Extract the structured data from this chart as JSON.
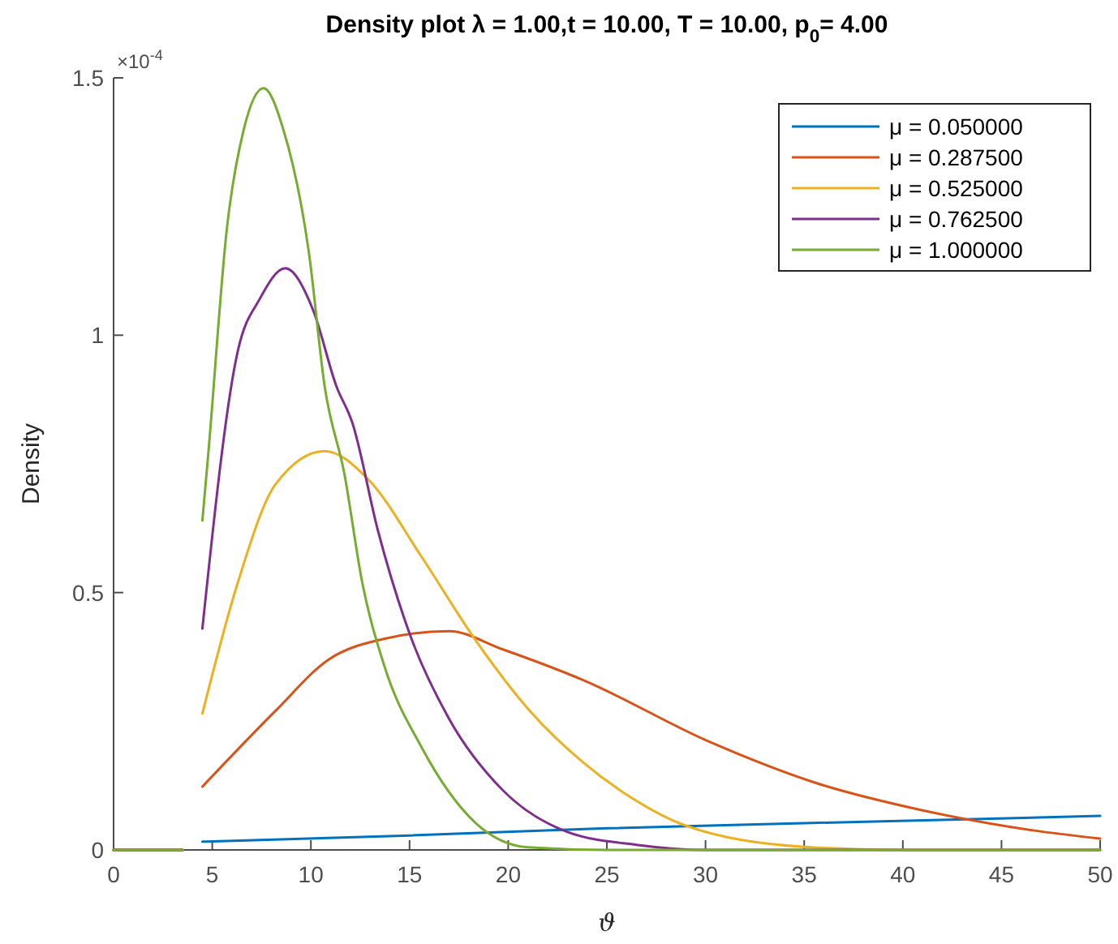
{
  "chart_data": {
    "type": "line",
    "title": "Density plot  λ = 1.00,t = 10.00, T = 10.00, p$_{0}$= 4.00",
    "xlabel": "ϑ",
    "ylabel": "Density",
    "annotations": [
      "×10$^{-4}$"
    ],
    "xlim": [
      0,
      50
    ],
    "ylim": [
      0,
      1.5
    ],
    "xticks": [
      0,
      5,
      10,
      15,
      20,
      25,
      30,
      35,
      40,
      45,
      50
    ],
    "yticks": [
      0,
      0.5,
      1,
      1.5
    ],
    "grid": false,
    "legend": "top right",
    "line_style": "solid",
    "marker": "none",
    "series": [
      {
        "name": "μ = 0.050000",
        "color": "#0072bd",
        "x": [
          0,
          3.5,
          4,
          4.5,
          15,
          25,
          35,
          50
        ],
        "values": [
          0,
          0,
          null,
          0.016,
          0.028,
          0.042,
          0.052,
          0.066
        ]
      },
      {
        "name": "μ = 0.287500",
        "color": "#d95319",
        "x": [
          0,
          3.5,
          4,
          4.5,
          8.2,
          10.9,
          13.7,
          17,
          19.7,
          23.8,
          30.2,
          35.6,
          41.1,
          46.6,
          50
        ],
        "values": [
          0,
          0,
          null,
          0.123,
          0.27,
          0.37,
          0.41,
          0.425,
          0.39,
          0.33,
          0.21,
          0.13,
          0.076,
          0.038,
          0.022
        ]
      },
      {
        "name": "μ = 0.525000",
        "color": "#edb120",
        "x": [
          0,
          3.5,
          4,
          4.5,
          6.3,
          8.2,
          10.7,
          12.9,
          15.6,
          18.3,
          21.1,
          23.8,
          26.3,
          28.8,
          35,
          40,
          50
        ],
        "values": [
          0,
          0,
          null,
          0.265,
          0.52,
          0.71,
          0.775,
          0.72,
          0.57,
          0.41,
          0.27,
          0.17,
          0.1,
          0.05,
          0.006,
          0,
          0
        ]
      },
      {
        "name": "μ = 0.762500",
        "color": "#7e2f8e",
        "x": [
          0,
          3.5,
          4,
          4.5,
          6.3,
          7.4,
          8.7,
          10.1,
          11.3,
          12.1,
          13.4,
          15.1,
          17,
          19.7,
          23,
          26.5,
          30,
          50
        ],
        "values": [
          0,
          0,
          null,
          0.43,
          0.97,
          1.07,
          1.13,
          1.05,
          0.9,
          0.83,
          0.62,
          0.41,
          0.255,
          0.117,
          0.035,
          0.01,
          0,
          0
        ]
      },
      {
        "name": "μ = 1.000000",
        "color": "#77ac30",
        "x": [
          0,
          3.5,
          4,
          4.5,
          4.8,
          5.75,
          6.6,
          7.6,
          8.6,
          9.9,
          10.7,
          11.7,
          12.6,
          13.7,
          15.6,
          18.3,
          21,
          25,
          50
        ],
        "values": [
          0,
          0,
          null,
          0.64,
          0.77,
          1.21,
          1.4,
          1.48,
          1.4,
          1.16,
          0.9,
          0.73,
          0.52,
          0.36,
          0.2,
          0.054,
          0.005,
          0,
          0
        ]
      }
    ]
  }
}
